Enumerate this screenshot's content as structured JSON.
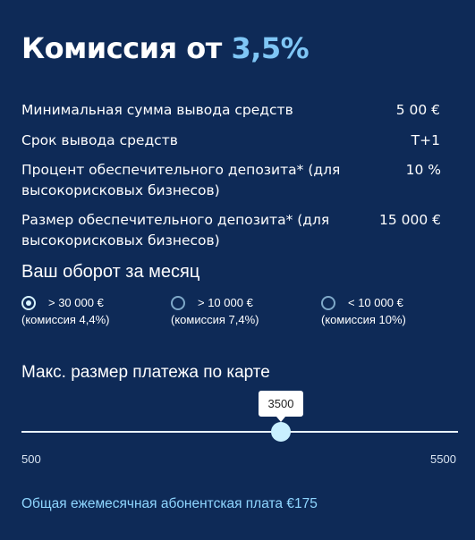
{
  "header": {
    "title_prefix": "Комиссия от",
    "title_rate": "3,5%"
  },
  "info_rows": [
    {
      "label": "Минимальная сумма вывода средств",
      "value": "5 00 €"
    },
    {
      "label": "Срок вывода средств",
      "value": "T+1"
    },
    {
      "label": "Процент обеспечительного депозита* (для высокорисковых бизнесов)",
      "value": "10 %"
    },
    {
      "label": "Размер обеспечительного депозита* (для высокорисковых бизнесов)",
      "value": "15 000 €"
    }
  ],
  "turnover": {
    "heading": "Ваш оборот за месяц",
    "options": [
      {
        "amount": "> 30 000 €",
        "fee": "(комиссия 4,4%)",
        "selected": true
      },
      {
        "amount": "> 10 000 €",
        "fee": "(комиссия 7,4%)",
        "selected": false
      },
      {
        "amount": "< 10 000 €",
        "fee": "(комиссия 10%)",
        "selected": false
      }
    ]
  },
  "card_payment": {
    "heading": "Макс. размер платежа по карте",
    "value": "3500",
    "min": "500",
    "max": "5500"
  },
  "footer": {
    "subscription_text": "Общая ежемесячная абонентская плата €175"
  },
  "colors": {
    "background": "#0e2a57",
    "accent": "#7fc6f5",
    "footer_text": "#8fd6ff"
  }
}
